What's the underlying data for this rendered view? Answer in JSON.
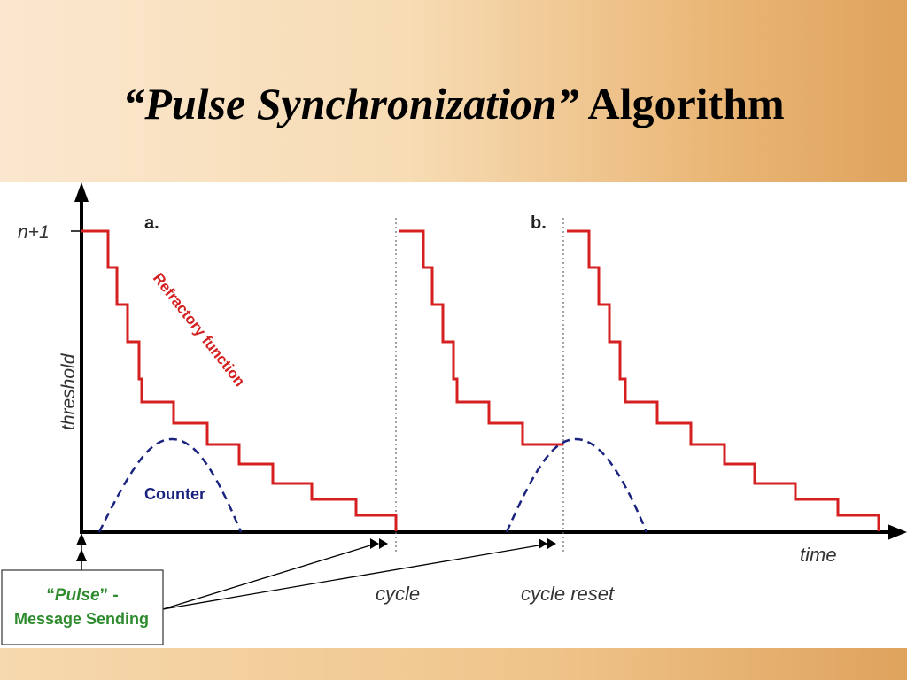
{
  "slide": {
    "title_quote_open": "“",
    "title_italic": "Pulse Synchronization",
    "title_quote_close": "”",
    "title_rest": " Algorithm"
  },
  "diagram": {
    "panel_a": "a.",
    "panel_b": "b.",
    "y_tick": "n+1",
    "y_label": "threshold",
    "x_label": "time",
    "refractory_label": "Refractory function",
    "counter_label": "Counter",
    "cycle_label": "cycle",
    "cycle_reset_label": "cycle reset",
    "pulse_box": {
      "quote_open": "“",
      "pulse_word": "Pulse",
      "quote_close": "” -",
      "line2": "Message Sending"
    },
    "colors": {
      "refractory": "#d42020",
      "counter": "#1a237e",
      "pulse_text": "#2e8b2e",
      "axis": "#000000"
    }
  }
}
